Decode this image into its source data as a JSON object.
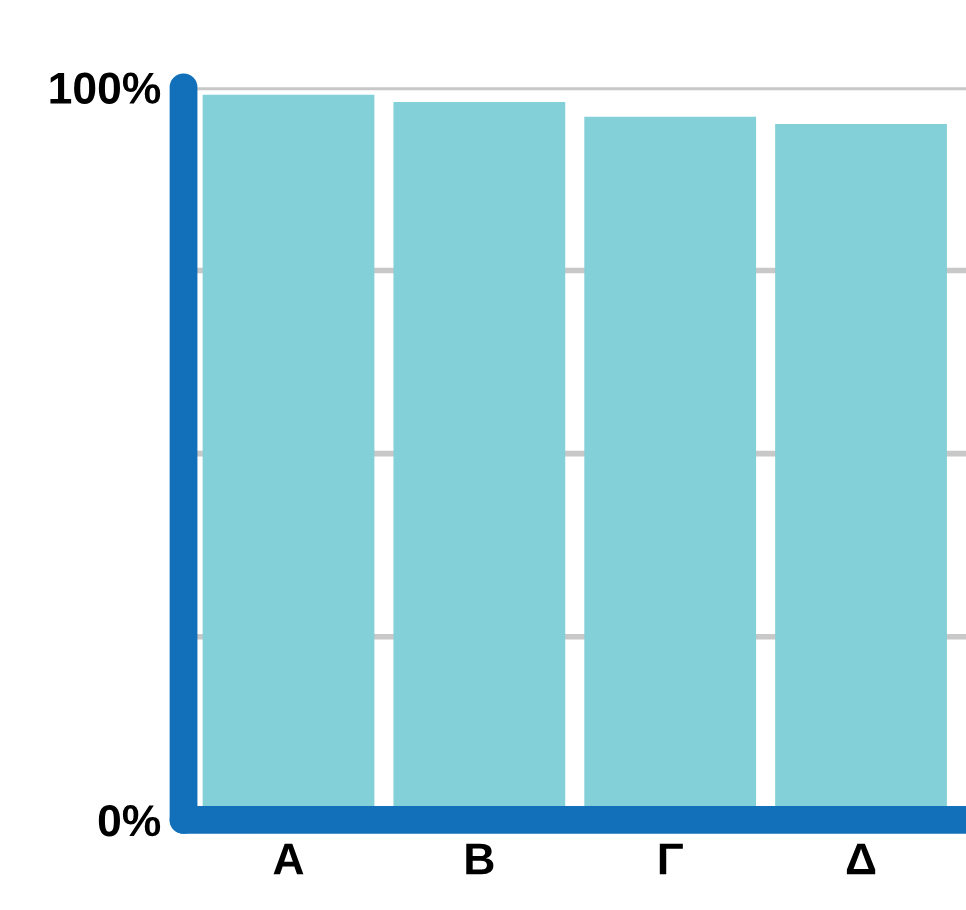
{
  "chart_data": {
    "type": "bar",
    "categories": [
      "Α",
      "Β",
      "Γ",
      "Δ"
    ],
    "values": [
      99,
      98,
      96,
      95
    ],
    "color": "#83d0d9",
    "ylim": [
      0,
      100
    ],
    "yticks": [
      {
        "value": 0,
        "label": "0%"
      },
      {
        "value": 25,
        "label": null
      },
      {
        "value": 50,
        "label": null
      },
      {
        "value": 75,
        "label": null
      },
      {
        "value": 100,
        "label": "100%"
      }
    ],
    "grid": "y"
  }
}
